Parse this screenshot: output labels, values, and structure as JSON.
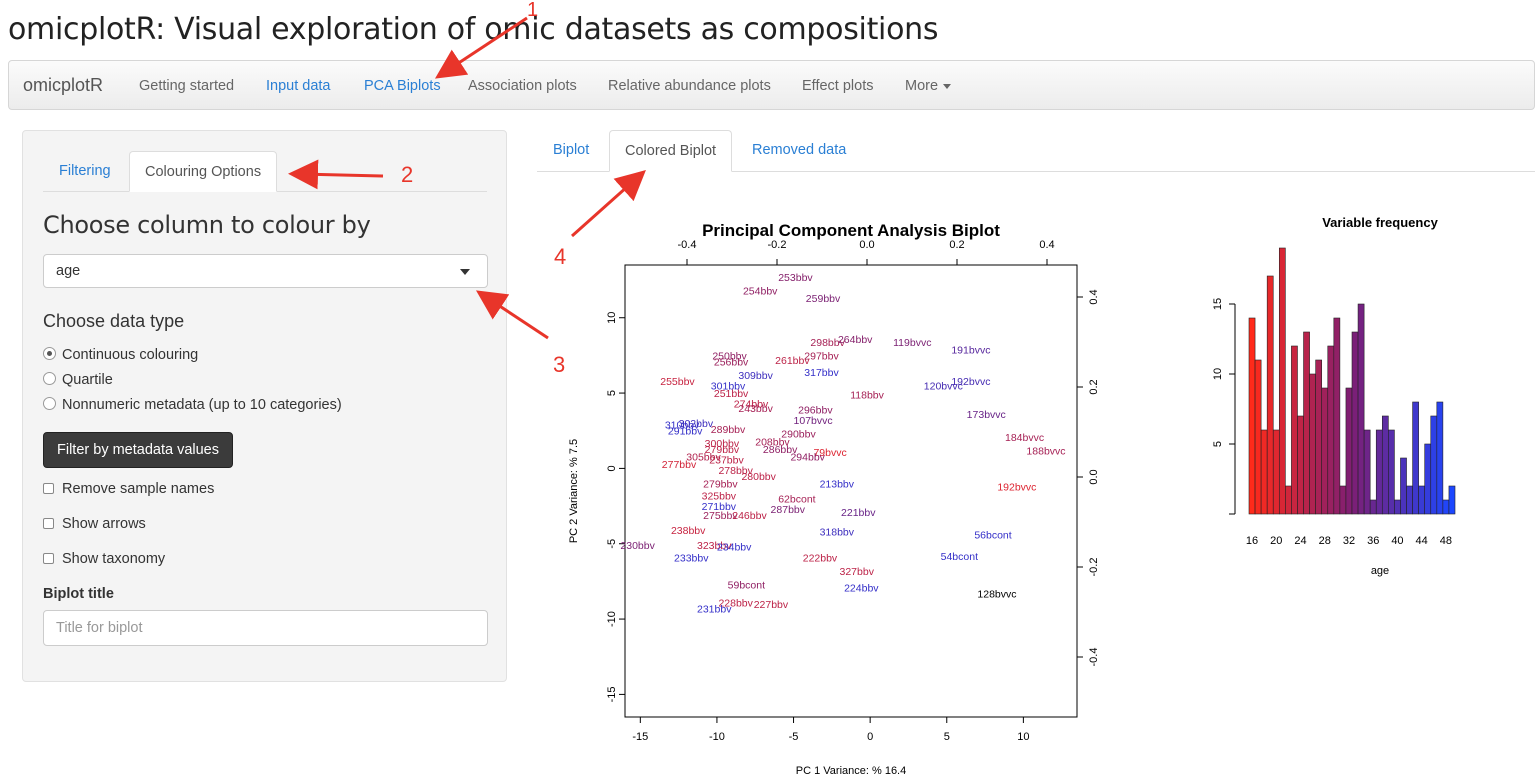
{
  "app_title": "omicplotR: Visual exploration of omic datasets as compositions",
  "navbar": {
    "brand": "omicplotR",
    "items": [
      {
        "label": "Getting started",
        "active": false
      },
      {
        "label": "Input data",
        "active": true
      },
      {
        "label": "PCA Biplots",
        "active": true
      },
      {
        "label": "Association plots",
        "active": false
      },
      {
        "label": "Relative abundance plots",
        "active": false
      },
      {
        "label": "Effect plots",
        "active": false
      }
    ],
    "more_label": "More"
  },
  "sidebar": {
    "tabs": [
      {
        "label": "Filtering",
        "active": false
      },
      {
        "label": "Colouring Options",
        "active": true
      }
    ],
    "choose_column_heading": "Choose column to colour by",
    "column_select_value": "age",
    "data_type_heading": "Choose data type",
    "radio_options": [
      {
        "label": "Continuous colouring",
        "selected": true
      },
      {
        "label": "Quartile",
        "selected": false
      },
      {
        "label": "Nonnumeric metadata (up to 10 categories)",
        "selected": false
      }
    ],
    "filter_button": "Filter by metadata values",
    "checkboxes": [
      {
        "label": "Remove sample names",
        "checked": false
      },
      {
        "label": "Show arrows",
        "checked": false
      },
      {
        "label": "Show taxonomy",
        "checked": false
      }
    ],
    "biplot_title_label": "Biplot title",
    "biplot_title_placeholder": "Title for biplot"
  },
  "main_tabs": [
    {
      "label": "Biplot",
      "active": false
    },
    {
      "label": "Colored Biplot",
      "active": true
    },
    {
      "label": "Removed data",
      "active": false
    }
  ],
  "annotations": {
    "labels": [
      "1",
      "2",
      "3",
      "4"
    ],
    "arrow_color": "#e8352a"
  },
  "chart_data": [
    {
      "type": "scatter",
      "title": "Principal Component Analysis Biplot",
      "xlabel": "PC 1 Variance: % 16.4",
      "ylabel": "PC 2 Variance: % 7.5",
      "xlim": [
        -16,
        13.5
      ],
      "ylim": [
        -16.5,
        13.5
      ],
      "x_ticks": [
        -15,
        -10,
        -5,
        0,
        5,
        10
      ],
      "y_ticks": [
        -15,
        -10,
        -5,
        0,
        5,
        10
      ],
      "top_axis_ticks": [
        "-0.4",
        "-0.2",
        "0.0",
        "0.2",
        "0.4"
      ],
      "right_axis_ticks": [
        "-0.4",
        "-0.2",
        "0.0",
        "0.2",
        "0.4"
      ],
      "grid": false,
      "color_scale": {
        "low": "#e8242a",
        "mid": "#7a1f72",
        "high": "#2233dd"
      },
      "points": [
        {
          "label": "253bbv",
          "x": -6.0,
          "y": 12.7,
          "c": 0.45
        },
        {
          "label": "254bbv",
          "x": -8.3,
          "y": 11.8,
          "c": 0.4
        },
        {
          "label": "259bbv",
          "x": -4.2,
          "y": 11.3,
          "c": 0.5
        },
        {
          "label": "298bbv",
          "x": -3.9,
          "y": 8.4,
          "c": 0.3
        },
        {
          "label": "264bbv",
          "x": -2.1,
          "y": 8.6,
          "c": 0.45
        },
        {
          "label": "119bvvc",
          "x": 1.5,
          "y": 8.4,
          "c": 0.5
        },
        {
          "label": "191bvvc",
          "x": 5.3,
          "y": 7.9,
          "c": 0.7
        },
        {
          "label": "250bbv",
          "x": -10.3,
          "y": 7.5,
          "c": 0.4
        },
        {
          "label": "256bbv",
          "x": -10.2,
          "y": 7.1,
          "c": 0.35
        },
        {
          "label": "297bbv",
          "x": -4.3,
          "y": 7.5,
          "c": 0.3
        },
        {
          "label": "261bbv",
          "x": -6.2,
          "y": 7.2,
          "c": 0.2
        },
        {
          "label": "317bbv",
          "x": -4.3,
          "y": 6.4,
          "c": 0.9
        },
        {
          "label": "309bbv",
          "x": -8.6,
          "y": 6.2,
          "c": 0.85
        },
        {
          "label": "255bbv",
          "x": -13.7,
          "y": 5.8,
          "c": 0.15
        },
        {
          "label": "301bbv",
          "x": -10.4,
          "y": 5.5,
          "c": 0.9
        },
        {
          "label": "251bbv",
          "x": -10.2,
          "y": 5.0,
          "c": 0.2
        },
        {
          "label": "192bvvc",
          "x": 5.3,
          "y": 5.8,
          "c": 0.8
        },
        {
          "label": "120bvvc",
          "x": 3.5,
          "y": 5.5,
          "c": 0.8
        },
        {
          "label": "118bbv",
          "x": -1.3,
          "y": 4.9,
          "c": 0.3
        },
        {
          "label": "274bbv",
          "x": -8.9,
          "y": 4.3,
          "c": 0.2
        },
        {
          "label": "243bbv",
          "x": -8.6,
          "y": 4.0,
          "c": 0.3
        },
        {
          "label": "296bbv",
          "x": -4.7,
          "y": 3.9,
          "c": 0.4
        },
        {
          "label": "173bvvc",
          "x": 6.3,
          "y": 3.6,
          "c": 0.6
        },
        {
          "label": "107bvvc",
          "x": -5.0,
          "y": 3.2,
          "c": 0.55
        },
        {
          "label": "310bbv",
          "x": -13.4,
          "y": 2.9,
          "c": 0.9
        },
        {
          "label": "302bbv",
          "x": -12.5,
          "y": 3.0,
          "c": 0.85
        },
        {
          "label": "291bbv",
          "x": -13.2,
          "y": 2.5,
          "c": 0.9
        },
        {
          "label": "289bbv",
          "x": -10.4,
          "y": 2.6,
          "c": 0.3
        },
        {
          "label": "290bbv",
          "x": -5.8,
          "y": 2.3,
          "c": 0.35
        },
        {
          "label": "184bvvc",
          "x": 8.8,
          "y": 2.1,
          "c": 0.3
        },
        {
          "label": "300bbv",
          "x": -10.8,
          "y": 1.7,
          "c": 0.2
        },
        {
          "label": "208bbv",
          "x": -7.5,
          "y": 1.8,
          "c": 0.3
        },
        {
          "label": "279bbv",
          "x": -10.8,
          "y": 1.3,
          "c": 0.2
        },
        {
          "label": "286bbv",
          "x": -7.0,
          "y": 1.3,
          "c": 0.4
        },
        {
          "label": "79bvvc",
          "x": -3.7,
          "y": 1.1,
          "c": 0.05
        },
        {
          "label": "188bvvc",
          "x": 10.2,
          "y": 1.2,
          "c": 0.3
        },
        {
          "label": "305bbv",
          "x": -12.0,
          "y": 0.8,
          "c": 0.25
        },
        {
          "label": "237bbv",
          "x": -10.5,
          "y": 0.6,
          "c": 0.2
        },
        {
          "label": "294bbv",
          "x": -5.2,
          "y": 0.8,
          "c": 0.4
        },
        {
          "label": "277bbv",
          "x": -13.6,
          "y": 0.3,
          "c": 0.1
        },
        {
          "label": "278bbv",
          "x": -9.9,
          "y": -0.1,
          "c": 0.2
        },
        {
          "label": "280bbv",
          "x": -8.4,
          "y": -0.5,
          "c": 0.2
        },
        {
          "label": "213bbv",
          "x": -3.3,
          "y": -1.0,
          "c": 0.9
        },
        {
          "label": "279bbv",
          "x": -10.9,
          "y": -1.0,
          "c": 0.3
        },
        {
          "label": "62bcont",
          "x": -6.0,
          "y": -2.0,
          "c": 0.3
        },
        {
          "label": "192bvvc",
          "x": 8.3,
          "y": -1.2,
          "c": 0.05
        },
        {
          "label": "325bbv",
          "x": -11.0,
          "y": -1.8,
          "c": 0.2
        },
        {
          "label": "271bbv",
          "x": -11.0,
          "y": -2.5,
          "c": 0.9
        },
        {
          "label": "287bbv",
          "x": -6.5,
          "y": -2.7,
          "c": 0.5
        },
        {
          "label": "275bbv",
          "x": -10.9,
          "y": -3.1,
          "c": 0.35
        },
        {
          "label": "246bbv",
          "x": -9.0,
          "y": -3.1,
          "c": 0.2
        },
        {
          "label": "221bbv",
          "x": -1.9,
          "y": -2.9,
          "c": 0.6
        },
        {
          "label": "238bbv",
          "x": -13.0,
          "y": -4.1,
          "c": 0.15
        },
        {
          "label": "318bbv",
          "x": -3.3,
          "y": -4.2,
          "c": 0.85
        },
        {
          "label": "56bcont",
          "x": 6.8,
          "y": -4.4,
          "c": 0.9
        },
        {
          "label": "230bbv",
          "x": -16.3,
          "y": -5.1,
          "c": 0.5
        },
        {
          "label": "323bbv",
          "x": -11.3,
          "y": -5.1,
          "c": 0.2
        },
        {
          "label": "234bbv",
          "x": -10.0,
          "y": -5.2,
          "c": 0.9
        },
        {
          "label": "233bbv",
          "x": -12.8,
          "y": -5.9,
          "c": 0.9
        },
        {
          "label": "222bbv",
          "x": -4.4,
          "y": -5.9,
          "c": 0.2
        },
        {
          "label": "54bcont",
          "x": 4.6,
          "y": -5.8,
          "c": 0.9
        },
        {
          "label": "327bbv",
          "x": -2.0,
          "y": -6.8,
          "c": 0.2
        },
        {
          "label": "59bcont",
          "x": -9.3,
          "y": -7.7,
          "c": 0.4
        },
        {
          "label": "128bvvc",
          "x": 7.0,
          "y": -8.3,
          "c": 0.0
        },
        {
          "label": "224bbv",
          "x": -1.7,
          "y": -7.9,
          "c": 0.9
        },
        {
          "label": "228bbv",
          "x": -9.9,
          "y": -8.9,
          "c": 0.2
        },
        {
          "label": "227bbv",
          "x": -7.6,
          "y": -9.0,
          "c": 0.2
        },
        {
          "label": "231bbv",
          "x": -11.3,
          "y": -9.3,
          "c": 0.9
        }
      ]
    },
    {
      "type": "bar",
      "title": "Variable frequency",
      "xlabel": "age",
      "categories": [
        "16",
        "17",
        "18",
        "19",
        "20",
        "21",
        "22",
        "23",
        "24",
        "25",
        "26",
        "27",
        "28",
        "29",
        "30",
        "31",
        "32",
        "33",
        "34",
        "35",
        "36",
        "37",
        "38",
        "39",
        "40",
        "41",
        "42",
        "43",
        "44",
        "45",
        "46",
        "47",
        "48",
        "49"
      ],
      "values": [
        14,
        11,
        6,
        17,
        6,
        19,
        2,
        12,
        7,
        13,
        10,
        11,
        9,
        12,
        14,
        2,
        9,
        13,
        15,
        6,
        1,
        6,
        7,
        6,
        1,
        4,
        2,
        8,
        2,
        5,
        7,
        8,
        1,
        2
      ],
      "x_tick_labels": [
        "16",
        "20",
        "24",
        "28",
        "32",
        "36",
        "40",
        "44",
        "48"
      ],
      "y_ticks": [
        5,
        10,
        15
      ],
      "ylim": [
        0,
        20
      ],
      "color_low": "#ff2a1a",
      "color_mid": "#7d1e74",
      "color_high": "#1c47ff"
    }
  ]
}
